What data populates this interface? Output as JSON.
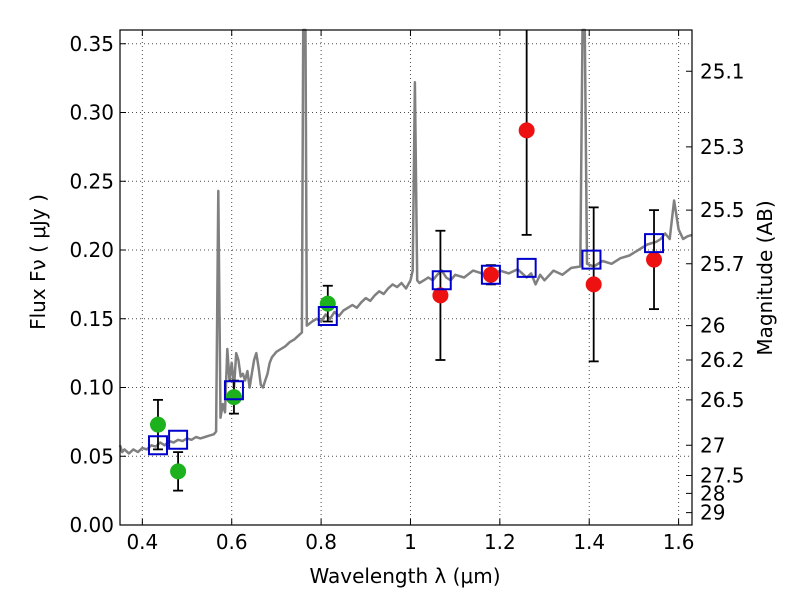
{
  "chart_data": {
    "type": "scatter",
    "xlabel": "Wavelength  λ (μm)",
    "ylabel": "Flux  Fν  ( μJy )",
    "ylabel_right": "Magnitude (AB)",
    "xlim": [
      0.35,
      1.63
    ],
    "ylim": [
      0.0,
      0.36
    ],
    "grid": true,
    "x_ticks": [
      0.4,
      0.6,
      0.8,
      1.0,
      1.2,
      1.4,
      1.6
    ],
    "x_tick_labels": [
      "0.4",
      "0.6",
      "0.8",
      "1",
      "1.2",
      "1.4",
      "1.6"
    ],
    "y_ticks": [
      0.0,
      0.05,
      0.1,
      0.15,
      0.2,
      0.25,
      0.3,
      0.35
    ],
    "y_tick_labels": [
      "0.00",
      "0.05",
      "0.10",
      "0.15",
      "0.20",
      "0.25",
      "0.30",
      "0.35"
    ],
    "right_ticks": [
      {
        "label": "25.1",
        "flux": 0.33
      },
      {
        "label": "25.3",
        "flux": 0.275
      },
      {
        "label": "25.5",
        "flux": 0.229
      },
      {
        "label": "25.7",
        "flux": 0.19
      },
      {
        "label": "26",
        "flux": 0.145
      },
      {
        "label": "26.2",
        "flux": 0.12
      },
      {
        "label": "26.5",
        "flux": 0.091
      },
      {
        "label": "27",
        "flux": 0.058
      },
      {
        "label": "27.5",
        "flux": 0.036
      },
      {
        "label": "28",
        "flux": 0.023
      },
      {
        "label": "29",
        "flux": 0.009
      }
    ],
    "series": [
      {
        "marker": "filled-circle",
        "color": "#1db21d",
        "points": [
          {
            "x": 0.435,
            "y": 0.073,
            "err": 0.018
          },
          {
            "x": 0.48,
            "y": 0.039,
            "err": 0.014
          },
          {
            "x": 0.605,
            "y": 0.093,
            "err": 0.012
          },
          {
            "x": 0.815,
            "y": 0.161,
            "err": 0.013
          }
        ]
      },
      {
        "marker": "filled-circle",
        "color": "#ee1111",
        "points": [
          {
            "x": 1.067,
            "y": 0.167,
            "err": 0.047
          },
          {
            "x": 1.18,
            "y": 0.182,
            "err": 0.007
          },
          {
            "x": 1.26,
            "y": 0.287,
            "err": 0.076
          },
          {
            "x": 1.41,
            "y": 0.175,
            "err": 0.056
          },
          {
            "x": 1.545,
            "y": 0.193,
            "err": 0.036
          }
        ]
      },
      {
        "marker": "open-square",
        "color": "#0000cc",
        "points": [
          {
            "x": 0.435,
            "y": 0.058
          },
          {
            "x": 0.48,
            "y": 0.062
          },
          {
            "x": 0.605,
            "y": 0.098
          },
          {
            "x": 0.815,
            "y": 0.152
          },
          {
            "x": 1.07,
            "y": 0.178
          },
          {
            "x": 1.18,
            "y": 0.182
          },
          {
            "x": 1.26,
            "y": 0.187
          },
          {
            "x": 1.405,
            "y": 0.193
          },
          {
            "x": 1.545,
            "y": 0.205
          }
        ]
      }
    ],
    "spectrum": {
      "color": "#808080",
      "points": [
        [
          0.35,
          0.058
        ],
        [
          0.355,
          0.053
        ],
        [
          0.36,
          0.055
        ],
        [
          0.37,
          0.052
        ],
        [
          0.38,
          0.055
        ],
        [
          0.39,
          0.053
        ],
        [
          0.4,
          0.056
        ],
        [
          0.41,
          0.055
        ],
        [
          0.42,
          0.058
        ],
        [
          0.43,
          0.057
        ],
        [
          0.44,
          0.06
        ],
        [
          0.45,
          0.058
        ],
        [
          0.46,
          0.061
        ],
        [
          0.47,
          0.06
        ],
        [
          0.48,
          0.062
        ],
        [
          0.49,
          0.061
        ],
        [
          0.5,
          0.063
        ],
        [
          0.51,
          0.062
        ],
        [
          0.52,
          0.064
        ],
        [
          0.53,
          0.063
        ],
        [
          0.54,
          0.064
        ],
        [
          0.55,
          0.065
        ],
        [
          0.56,
          0.066
        ],
        [
          0.565,
          0.068
        ],
        [
          0.57,
          0.243
        ],
        [
          0.575,
          0.078
        ],
        [
          0.58,
          0.088
        ],
        [
          0.585,
          0.082
        ],
        [
          0.59,
          0.128
        ],
        [
          0.595,
          0.105
        ],
        [
          0.6,
          0.118
        ],
        [
          0.605,
          0.1
        ],
        [
          0.61,
          0.125
        ],
        [
          0.615,
          0.12
        ],
        [
          0.62,
          0.108
        ],
        [
          0.625,
          0.11
        ],
        [
          0.63,
          0.105
        ],
        [
          0.635,
          0.112
        ],
        [
          0.64,
          0.1
        ],
        [
          0.645,
          0.11
        ],
        [
          0.65,
          0.12
        ],
        [
          0.655,
          0.125
        ],
        [
          0.66,
          0.115
        ],
        [
          0.665,
          0.102
        ],
        [
          0.67,
          0.1
        ],
        [
          0.675,
          0.105
        ],
        [
          0.68,
          0.11
        ],
        [
          0.685,
          0.118
        ],
        [
          0.69,
          0.122
        ],
        [
          0.7,
          0.126
        ],
        [
          0.71,
          0.128
        ],
        [
          0.72,
          0.13
        ],
        [
          0.73,
          0.133
        ],
        [
          0.74,
          0.135
        ],
        [
          0.75,
          0.138
        ],
        [
          0.757,
          0.14
        ],
        [
          0.76,
          0.36
        ],
        [
          0.765,
          0.36
        ],
        [
          0.768,
          0.145
        ],
        [
          0.78,
          0.148
        ],
        [
          0.79,
          0.15
        ],
        [
          0.8,
          0.148
        ],
        [
          0.81,
          0.153
        ],
        [
          0.82,
          0.15
        ],
        [
          0.83,
          0.155
        ],
        [
          0.84,
          0.152
        ],
        [
          0.85,
          0.156
        ],
        [
          0.86,
          0.158
        ],
        [
          0.87,
          0.16
        ],
        [
          0.88,
          0.158
        ],
        [
          0.89,
          0.162
        ],
        [
          0.9,
          0.165
        ],
        [
          0.91,
          0.163
        ],
        [
          0.92,
          0.167
        ],
        [
          0.93,
          0.17
        ],
        [
          0.94,
          0.168
        ],
        [
          0.95,
          0.172
        ],
        [
          0.96,
          0.175
        ],
        [
          0.97,
          0.173
        ],
        [
          0.98,
          0.176
        ],
        [
          0.99,
          0.172
        ],
        [
          1.0,
          0.178
        ],
        [
          1.005,
          0.185
        ],
        [
          1.01,
          0.322
        ],
        [
          1.015,
          0.178
        ],
        [
          1.02,
          0.176
        ],
        [
          1.03,
          0.178
        ],
        [
          1.04,
          0.18
        ],
        [
          1.05,
          0.178
        ],
        [
          1.06,
          0.182
        ],
        [
          1.07,
          0.185
        ],
        [
          1.08,
          0.18
        ],
        [
          1.09,
          0.178
        ],
        [
          1.1,
          0.182
        ],
        [
          1.12,
          0.18
        ],
        [
          1.14,
          0.185
        ],
        [
          1.16,
          0.183
        ],
        [
          1.18,
          0.18
        ],
        [
          1.2,
          0.185
        ],
        [
          1.22,
          0.183
        ],
        [
          1.24,
          0.186
        ],
        [
          1.26,
          0.18
        ],
        [
          1.27,
          0.183
        ],
        [
          1.28,
          0.175
        ],
        [
          1.29,
          0.182
        ],
        [
          1.3,
          0.178
        ],
        [
          1.32,
          0.185
        ],
        [
          1.34,
          0.182
        ],
        [
          1.36,
          0.187
        ],
        [
          1.38,
          0.188
        ],
        [
          1.385,
          0.36
        ],
        [
          1.39,
          0.36
        ],
        [
          1.395,
          0.19
        ],
        [
          1.41,
          0.188
        ],
        [
          1.43,
          0.192
        ],
        [
          1.45,
          0.19
        ],
        [
          1.47,
          0.194
        ],
        [
          1.49,
          0.196
        ],
        [
          1.51,
          0.2
        ],
        [
          1.53,
          0.204
        ],
        [
          1.55,
          0.206
        ],
        [
          1.56,
          0.208
        ],
        [
          1.57,
          0.212
        ],
        [
          1.58,
          0.208
        ],
        [
          1.59,
          0.236
        ],
        [
          1.6,
          0.215
        ],
        [
          1.61,
          0.208
        ],
        [
          1.62,
          0.21
        ],
        [
          1.63,
          0.211
        ]
      ]
    }
  }
}
